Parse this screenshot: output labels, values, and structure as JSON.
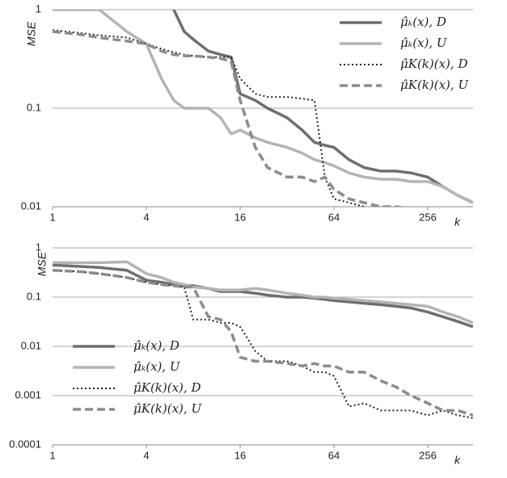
{
  "chart_data": [
    {
      "type": "line",
      "xscale": "log",
      "yscale": "log",
      "grid": true,
      "legend": "upper right",
      "xlabel": "k",
      "ylabel": "MSE",
      "xlim": [
        1,
        500
      ],
      "ylim": [
        0.01,
        1
      ],
      "xticks": [
        1,
        4,
        16,
        64,
        256
      ],
      "yticks": [
        0.01,
        0.1,
        1
      ],
      "x": [
        1,
        1.5,
        2,
        3,
        4,
        5,
        6,
        7,
        8,
        10,
        12,
        14,
        16,
        20,
        24,
        32,
        40,
        48,
        56,
        64,
        80,
        100,
        128,
        160,
        200,
        256,
        320,
        400,
        500
      ],
      "series": [
        {
          "name": "μ̂ₖ(x), D",
          "color": "#6e6e6e",
          "dash": "solid",
          "values": [
            null,
            null,
            null,
            null,
            null,
            1.6,
            1.0,
            0.6,
            0.5,
            0.38,
            0.35,
            0.33,
            0.14,
            0.12,
            0.1,
            0.08,
            0.06,
            0.045,
            0.042,
            0.04,
            0.03,
            0.025,
            0.023,
            0.023,
            0.022,
            0.02,
            0.016,
            0.013,
            0.011
          ]
        },
        {
          "name": "μ̂ₖ(x), U",
          "color": "#b4b4b4",
          "dash": "solid",
          "values": [
            1,
            1,
            1,
            0.6,
            0.45,
            0.2,
            0.12,
            0.1,
            0.1,
            0.1,
            0.08,
            0.055,
            0.06,
            0.05,
            0.045,
            0.04,
            0.035,
            0.03,
            0.028,
            0.026,
            0.022,
            0.02,
            0.019,
            0.019,
            0.018,
            0.018,
            0.016,
            0.013,
            0.011
          ]
        },
        {
          "name": "μ̂K(k)(x), D",
          "color": "#222222",
          "dash": "dotted",
          "values": [
            0.62,
            0.58,
            0.55,
            0.52,
            0.45,
            0.4,
            0.37,
            0.35,
            0.34,
            0.33,
            0.33,
            0.33,
            0.2,
            0.14,
            0.13,
            0.13,
            0.125,
            0.12,
            0.02,
            0.012,
            0.011,
            0.01,
            0.009,
            0.009,
            0.009,
            0.009,
            0.009,
            0.009,
            0.009
          ]
        },
        {
          "name": "μ̂K(k)(x), U",
          "color": "#8c8c8c",
          "dash": "dashed",
          "values": [
            0.6,
            0.56,
            0.52,
            0.48,
            0.45,
            0.38,
            0.35,
            0.34,
            0.34,
            0.33,
            0.32,
            0.3,
            0.12,
            0.04,
            0.025,
            0.02,
            0.02,
            0.018,
            0.02,
            0.015,
            0.012,
            0.011,
            0.01,
            0.01,
            0.0095,
            0.0095,
            0.0095,
            0.0095,
            0.0095
          ]
        }
      ]
    },
    {
      "type": "line",
      "xscale": "log",
      "yscale": "log",
      "grid": true,
      "legend": "lower left",
      "xlabel": "k",
      "ylabel": "MSE",
      "xlim": [
        1,
        500
      ],
      "ylim": [
        0.0001,
        1
      ],
      "xticks": [
        1,
        4,
        16,
        64,
        256
      ],
      "yticks": [
        0.0001,
        0.001,
        0.01,
        0.1,
        1
      ],
      "x": [
        1,
        1.5,
        2,
        3,
        4,
        5,
        6,
        7,
        8,
        10,
        12,
        14,
        16,
        20,
        24,
        32,
        40,
        48,
        56,
        64,
        80,
        100,
        128,
        160,
        200,
        256,
        320,
        400,
        500
      ],
      "series": [
        {
          "name": "μ̂ₖ(x), D",
          "color": "#6e6e6e",
          "dash": "solid",
          "values": [
            0.45,
            0.42,
            0.4,
            0.35,
            0.22,
            0.2,
            0.18,
            0.17,
            0.17,
            0.15,
            0.13,
            0.13,
            0.13,
            0.12,
            0.11,
            0.1,
            0.1,
            0.095,
            0.09,
            0.085,
            0.08,
            0.075,
            0.07,
            0.065,
            0.06,
            0.05,
            0.04,
            0.032,
            0.025
          ]
        },
        {
          "name": "μ̂ₖ(x), U",
          "color": "#b4b4b4",
          "dash": "solid",
          "values": [
            0.5,
            0.5,
            0.5,
            0.52,
            0.3,
            0.25,
            0.2,
            0.18,
            0.16,
            0.15,
            0.14,
            0.14,
            0.14,
            0.15,
            0.14,
            0.12,
            0.11,
            0.1,
            0.1,
            0.095,
            0.09,
            0.085,
            0.08,
            0.075,
            0.07,
            0.065,
            0.05,
            0.04,
            0.03
          ]
        },
        {
          "name": "μ̂K(k)(x), D",
          "color": "#222222",
          "dash": "dotted",
          "values": [
            0.35,
            0.33,
            0.3,
            0.25,
            0.2,
            0.18,
            0.17,
            0.16,
            0.035,
            0.035,
            0.03,
            0.03,
            0.025,
            0.008,
            0.005,
            0.005,
            0.004,
            0.003,
            0.003,
            0.0025,
            0.0006,
            0.0007,
            0.0005,
            0.0005,
            0.0005,
            0.0004,
            0.0005,
            0.0004,
            0.00035
          ]
        },
        {
          "name": "μ̂K(k)(x), U",
          "color": "#8c8c8c",
          "dash": "dashed",
          "values": [
            0.35,
            0.33,
            0.3,
            0.25,
            0.2,
            0.18,
            0.17,
            0.16,
            0.16,
            0.04,
            0.035,
            0.02,
            0.006,
            0.005,
            0.005,
            0.0045,
            0.004,
            0.0045,
            0.004,
            0.004,
            0.003,
            0.003,
            0.002,
            0.0015,
            0.001,
            0.0007,
            0.0005,
            0.0005,
            0.0004
          ]
        }
      ]
    }
  ]
}
